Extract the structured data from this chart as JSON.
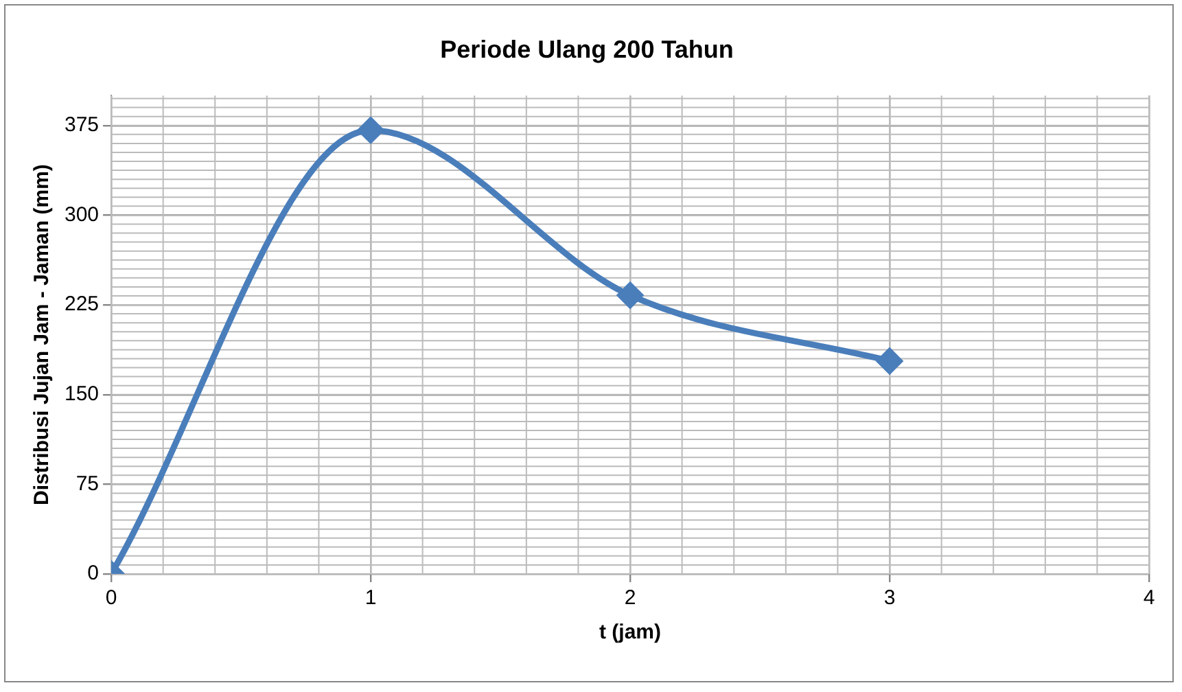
{
  "chart_data": {
    "type": "line",
    "title": "Periode Ulang 200 Tahun",
    "xlabel": "t (jam)",
    "ylabel": "Distribusi Jujan Jam - Jaman (mm)",
    "x": [
      0,
      1,
      2,
      3
    ],
    "series": [
      {
        "color": "#4a7ebb",
        "values": [
          0,
          371,
          233,
          178
        ]
      }
    ],
    "xlim": [
      0,
      4
    ],
    "xticks": [
      0,
      1,
      2,
      3,
      4
    ],
    "ylim": [
      0,
      400
    ],
    "yticks": [
      0,
      75,
      150,
      225,
      300,
      375
    ],
    "grid": true,
    "legend": false,
    "marker": "diamond",
    "line_style": "solid"
  }
}
